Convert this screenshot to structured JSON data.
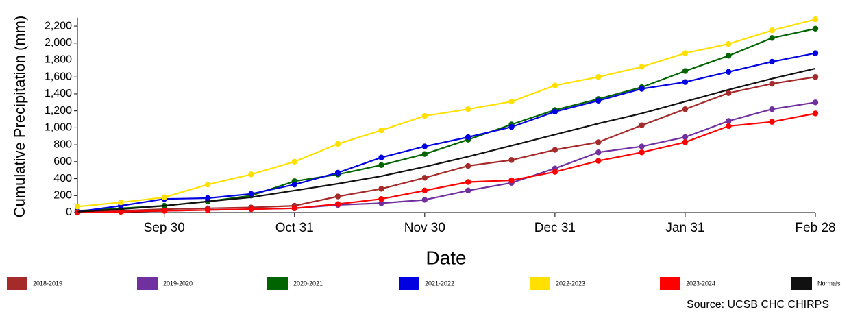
{
  "chart_data": {
    "type": "line",
    "x_label": "Date",
    "y_label": "Cumulative Precipitation (mm)",
    "source": "Source: UCSB CHC CHIRPS",
    "categories": [
      null,
      null,
      "Sep 30",
      null,
      null,
      "Oct 31",
      null,
      null,
      "Nov 30",
      null,
      null,
      "Dec 31",
      null,
      null,
      "Jan 31",
      null,
      null,
      "Feb 28"
    ],
    "ylim": [
      0,
      2300
    ],
    "yticks": [
      0,
      200,
      400,
      600,
      800,
      {
        "value": 1000,
        "label": "1,000"
      },
      {
        "value": 1200,
        "label": "1,200"
      },
      {
        "value": 1400,
        "label": "1,400"
      },
      {
        "value": 1600,
        "label": "1,600"
      },
      {
        "value": 1800,
        "label": "1,800"
      },
      {
        "value": 2000,
        "label": "2,000"
      },
      {
        "value": 2200,
        "label": "2,200"
      }
    ],
    "grid": false,
    "legend": "bottom",
    "series": [
      {
        "name": "2018-2019",
        "color": "#a52a2a",
        "markers": true,
        "values": [
          10,
          20,
          40,
          50,
          60,
          80,
          190,
          280,
          410,
          550,
          620,
          740,
          830,
          1030,
          1220,
          1410,
          1520,
          1600
        ]
      },
      {
        "name": "2019-2020",
        "color": "#7030a0",
        "markers": true,
        "values": [
          0,
          10,
          20,
          30,
          40,
          50,
          90,
          110,
          150,
          260,
          350,
          520,
          710,
          780,
          890,
          1080,
          1220,
          1300
        ]
      },
      {
        "name": "2020-2021",
        "color": "#006400",
        "markers": true,
        "values": [
          20,
          50,
          80,
          130,
          200,
          370,
          450,
          560,
          690,
          860,
          1040,
          1210,
          1340,
          1480,
          1670,
          1850,
          2060,
          2170
        ]
      },
      {
        "name": "2021-2022",
        "color": "#0000e0",
        "markers": true,
        "values": [
          10,
          80,
          160,
          170,
          220,
          330,
          470,
          650,
          780,
          890,
          1010,
          1190,
          1320,
          1460,
          1540,
          1660,
          1780,
          1880
        ]
      },
      {
        "name": "2022-2023",
        "color": "#ffe000",
        "markers": true,
        "values": [
          70,
          120,
          180,
          330,
          450,
          600,
          810,
          970,
          1140,
          1220,
          1310,
          1500,
          1600,
          1720,
          1880,
          1990,
          2150,
          2280
        ]
      },
      {
        "name": "2023-2024",
        "color": "#ff0000",
        "markers": true,
        "values": [
          0,
          10,
          20,
          30,
          40,
          50,
          100,
          160,
          260,
          360,
          380,
          480,
          610,
          710,
          830,
          1020,
          1070,
          1170
        ]
      },
      {
        "name": "Normals",
        "color": "#111111",
        "markers": false,
        "values": [
          10,
          40,
          80,
          130,
          180,
          260,
          340,
          430,
          540,
          660,
          790,
          920,
          1050,
          1170,
          1310,
          1450,
          1580,
          1700
        ]
      }
    ]
  }
}
